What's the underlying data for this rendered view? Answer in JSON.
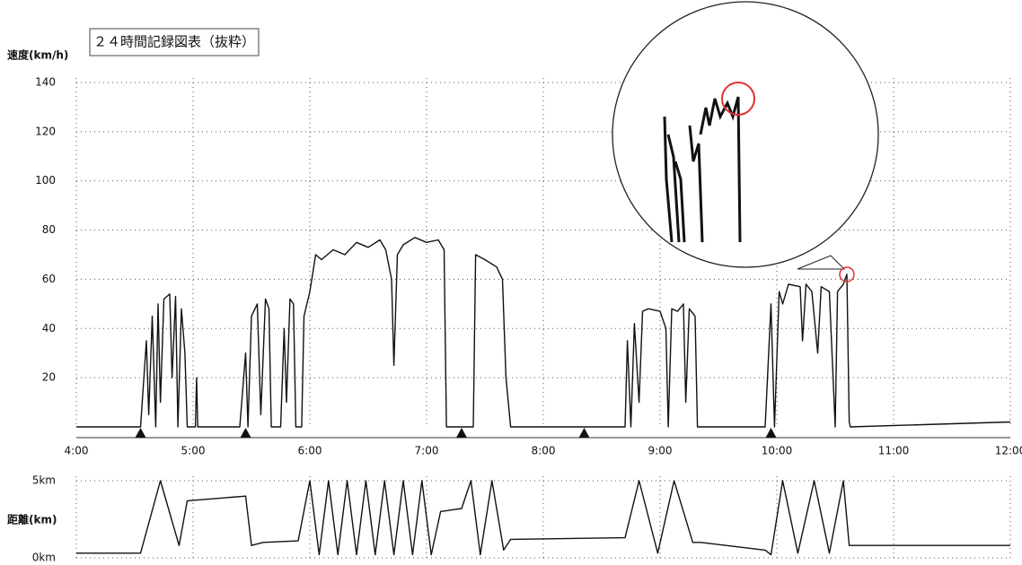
{
  "chart_data": [
    {
      "type": "line",
      "title": "２４時間記録図表（抜粋）",
      "y_label": "速度(km/h)",
      "x": [
        4.0,
        4.5,
        4.55,
        4.6,
        4.62,
        4.65,
        4.68,
        4.7,
        4.72,
        4.75,
        4.8,
        4.82,
        4.85,
        4.87,
        4.9,
        4.93,
        4.95,
        5.02,
        5.03,
        5.04,
        5.4,
        5.45,
        5.47,
        5.5,
        5.55,
        5.58,
        5.62,
        5.65,
        5.67,
        5.75,
        5.78,
        5.8,
        5.83,
        5.86,
        5.88,
        5.93,
        5.95,
        6.0,
        6.05,
        6.1,
        6.2,
        6.3,
        6.4,
        6.5,
        6.6,
        6.65,
        6.7,
        6.72,
        6.75,
        6.8,
        6.9,
        7.0,
        7.1,
        7.15,
        7.17,
        7.4,
        7.42,
        7.5,
        7.6,
        7.65,
        7.68,
        7.72,
        8.7,
        8.72,
        8.75,
        8.78,
        8.82,
        8.85,
        8.9,
        9.0,
        9.05,
        9.07,
        9.1,
        9.15,
        9.2,
        9.22,
        9.25,
        9.3,
        9.32,
        9.9,
        9.95,
        9.98,
        10.02,
        10.05,
        10.1,
        10.2,
        10.22,
        10.25,
        10.3,
        10.35,
        10.38,
        10.45,
        10.5,
        10.52,
        10.57,
        10.6,
        10.62,
        10.63,
        12.0
      ],
      "series": [
        {
          "name": "速度",
          "color": "#111111",
          "values": [
            0,
            0,
            0,
            35,
            5,
            45,
            0,
            50,
            10,
            52,
            54,
            20,
            53,
            0,
            48,
            30,
            0,
            0,
            20,
            0,
            0,
            30,
            0,
            45,
            50,
            5,
            52,
            48,
            0,
            0,
            40,
            10,
            52,
            50,
            0,
            0,
            45,
            55,
            70,
            68,
            72,
            70,
            75,
            73,
            76,
            72,
            60,
            25,
            70,
            74,
            77,
            75,
            76,
            72,
            0,
            0,
            70,
            68,
            65,
            60,
            20,
            0,
            0,
            35,
            0,
            42,
            10,
            47,
            48,
            47,
            40,
            0,
            48,
            47,
            50,
            10,
            48,
            45,
            0,
            0,
            50,
            0,
            55,
            50,
            58,
            57,
            35,
            58,
            55,
            30,
            57,
            55,
            0,
            55,
            58,
            62,
            2,
            0,
            2
          ]
        }
      ],
      "xlim": [
        4,
        12
      ],
      "ylim": [
        0,
        140
      ],
      "yticks": [
        20,
        40,
        60,
        80,
        100,
        120,
        140
      ],
      "xticks": [
        {
          "value": 4,
          "label": "4:00"
        },
        {
          "value": 5,
          "label": "5:00"
        },
        {
          "value": 6,
          "label": "6:00"
        },
        {
          "value": 7,
          "label": "7:00"
        },
        {
          "value": 8,
          "label": "8:00"
        },
        {
          "value": 9,
          "label": "9:00"
        },
        {
          "value": 10,
          "label": "10:00"
        },
        {
          "value": 11,
          "label": "11:00"
        },
        {
          "value": 12,
          "label": "12:00"
        }
      ],
      "grid": true,
      "event_times": [
        4.55,
        5.45,
        7.3,
        8.35,
        9.95
      ]
    },
    {
      "type": "line",
      "y_label": "距離(km)",
      "x": [
        4.0,
        4.55,
        4.72,
        4.88,
        4.95,
        5.45,
        5.5,
        5.6,
        5.9,
        6.0,
        6.08,
        6.16,
        6.24,
        6.32,
        6.4,
        6.48,
        6.56,
        6.64,
        6.72,
        6.8,
        6.88,
        6.96,
        7.04,
        7.12,
        7.3,
        7.38,
        7.46,
        7.56,
        7.66,
        7.72,
        8.7,
        8.82,
        8.98,
        9.12,
        9.28,
        9.35,
        9.9,
        9.95,
        10.05,
        10.18,
        10.32,
        10.45,
        10.57,
        10.62,
        12.0
      ],
      "series": [
        {
          "name": "距離",
          "color": "#111111",
          "values": [
            0.3,
            0.3,
            5,
            0.8,
            3.7,
            4.0,
            0.8,
            1.0,
            1.1,
            5,
            0.2,
            5,
            0.2,
            5,
            0.2,
            5,
            0.2,
            5,
            0.2,
            5,
            0.2,
            5,
            0.2,
            3.0,
            3.2,
            5,
            0.2,
            5,
            0.5,
            1.2,
            1.3,
            5,
            0.3,
            5,
            1.0,
            1.0,
            0.5,
            0.2,
            5,
            0.3,
            5,
            0.3,
            5,
            0.8,
            0.8
          ]
        }
      ],
      "xlim": [
        4,
        12
      ],
      "ylim": [
        0,
        5
      ],
      "yticks": [
        {
          "value": 0,
          "label": "0km"
        },
        {
          "value": 5,
          "label": "5km"
        }
      ],
      "grid": true
    }
  ]
}
